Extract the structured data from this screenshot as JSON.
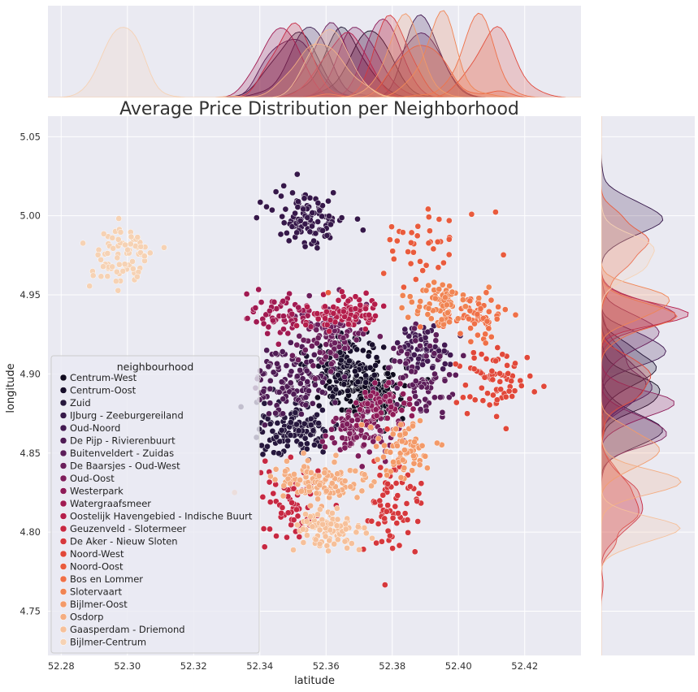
{
  "chart_data": {
    "type": "scatter",
    "title": "Average Price Distribution per Neighborhood",
    "xlabel": "latitude",
    "ylabel": "longitude",
    "xlim": [
      52.276,
      52.437
    ],
    "ylim": [
      4.722,
      5.063
    ],
    "x_ticks": [
      "52.28",
      "52.30",
      "52.32",
      "52.34",
      "52.36",
      "52.38",
      "52.40",
      "52.42"
    ],
    "y_ticks": [
      "4.75",
      "4.80",
      "4.85",
      "4.90",
      "4.95",
      "5.00",
      "5.05"
    ],
    "grid": true,
    "legend_position": "lower-left",
    "legend_title": "neighbourhood",
    "marginal_plots": [
      "kde-top",
      "kde-right"
    ],
    "series": [
      {
        "name": "Centrum-West",
        "color": "#0f0a1e",
        "cluster": {
          "center": [
            52.373,
            4.889
          ],
          "spread": [
            0.0055,
            0.0095
          ],
          "count": 170
        }
      },
      {
        "name": "Centrum-Oost",
        "color": "#180f2c",
        "cluster": {
          "center": [
            52.366,
            4.905
          ],
          "spread": [
            0.0055,
            0.011
          ],
          "count": 150
        }
      },
      {
        "name": "Zuid",
        "color": "#26173d",
        "cluster": {
          "center": [
            52.351,
            4.865
          ],
          "spread": [
            0.0065,
            0.009
          ],
          "count": 130
        }
      },
      {
        "name": "IJburg - Zeeburgereiland",
        "color": "#36184a",
        "cluster": {
          "center": [
            52.355,
            4.999
          ],
          "spread": [
            0.0055,
            0.009
          ],
          "count": 110
        }
      },
      {
        "name": "Oud-Noord",
        "color": "#421a52",
        "cluster": {
          "center": [
            52.389,
            4.917
          ],
          "spread": [
            0.004,
            0.007
          ],
          "count": 70
        }
      },
      {
        "name": "De Pijp - Rivierenbuurt",
        "color": "#4f1c55",
        "cluster": {
          "center": [
            52.35,
            4.895
          ],
          "spread": [
            0.0055,
            0.011
          ],
          "count": 120
        }
      },
      {
        "name": "Buitenveldert - Zuidas",
        "color": "#5c1e5a",
        "cluster": {
          "center": [
            52.388,
            4.898
          ],
          "spread": [
            0.006,
            0.013
          ],
          "count": 80
        }
      },
      {
        "name": "De Baarsjes - Oud-West",
        "color": "#6b1f5c",
        "cluster": {
          "center": [
            52.362,
            4.925
          ],
          "spread": [
            0.0055,
            0.01
          ],
          "count": 110
        }
      },
      {
        "name": "Oud-Oost",
        "color": "#7d1d5b",
        "cluster": {
          "center": [
            52.369,
            4.863
          ],
          "spread": [
            0.005,
            0.008
          ],
          "count": 100
        }
      },
      {
        "name": "Westerpark",
        "color": "#8e1b58",
        "cluster": {
          "center": [
            52.378,
            4.881
          ],
          "spread": [
            0.004,
            0.006
          ],
          "count": 60
        }
      },
      {
        "name": "Watergraafsmeer",
        "color": "#a11a52",
        "cluster": {
          "center": [
            52.346,
            4.937
          ],
          "spread": [
            0.0045,
            0.008
          ],
          "count": 60
        }
      },
      {
        "name": "Oostelijk Havengebied - Indische Buurt",
        "color": "#b41d4b",
        "cluster": {
          "center": [
            52.366,
            4.939
          ],
          "spread": [
            0.006,
            0.005
          ],
          "count": 90
        }
      },
      {
        "name": "Geuzenveld - Slotermeer",
        "color": "#c72842",
        "cluster": {
          "center": [
            52.35,
            4.817
          ],
          "spread": [
            0.005,
            0.013
          ],
          "count": 60
        }
      },
      {
        "name": "De Aker - Nieuw Sloten",
        "color": "#d6383c",
        "cluster": {
          "center": [
            52.38,
            4.815
          ],
          "spread": [
            0.0045,
            0.016
          ],
          "count": 70
        }
      },
      {
        "name": "Noord-West",
        "color": "#e1483a",
        "cluster": {
          "center": [
            52.411,
            4.896
          ],
          "spread": [
            0.006,
            0.01
          ],
          "count": 70
        }
      },
      {
        "name": "Noord-Oost",
        "color": "#e95b3d",
        "cluster": {
          "center": [
            52.392,
            4.985
          ],
          "spread": [
            0.008,
            0.012
          ],
          "count": 40
        }
      },
      {
        "name": "Bos en Lommer",
        "color": "#ef7048",
        "cluster": {
          "center": [
            52.405,
            4.935
          ],
          "spread": [
            0.004,
            0.006
          ],
          "count": 60
        }
      },
      {
        "name": "Slotervaart",
        "color": "#f08453",
        "cluster": {
          "center": [
            52.395,
            4.945
          ],
          "spread": [
            0.0045,
            0.007
          ],
          "count": 70
        }
      },
      {
        "name": "Bijlmer-Oost",
        "color": "#f39a69",
        "cluster": {
          "center": [
            52.383,
            4.852
          ],
          "spread": [
            0.0045,
            0.01
          ],
          "count": 70
        }
      },
      {
        "name": "Osdorp",
        "color": "#f4ad81",
        "cluster": {
          "center": [
            52.358,
            4.832
          ],
          "spread": [
            0.008,
            0.007
          ],
          "count": 110
        }
      },
      {
        "name": "Gaasperdam - Driemond",
        "color": "#f6c09a",
        "cluster": {
          "center": [
            52.361,
            4.8
          ],
          "spread": [
            0.0055,
            0.007
          ],
          "count": 90
        }
      },
      {
        "name": "Bijlmer-Centrum",
        "color": "#f6d2b4",
        "cluster": {
          "center": [
            52.298,
            4.975
          ],
          "spread": [
            0.005,
            0.011
          ],
          "count": 80
        }
      }
    ]
  }
}
